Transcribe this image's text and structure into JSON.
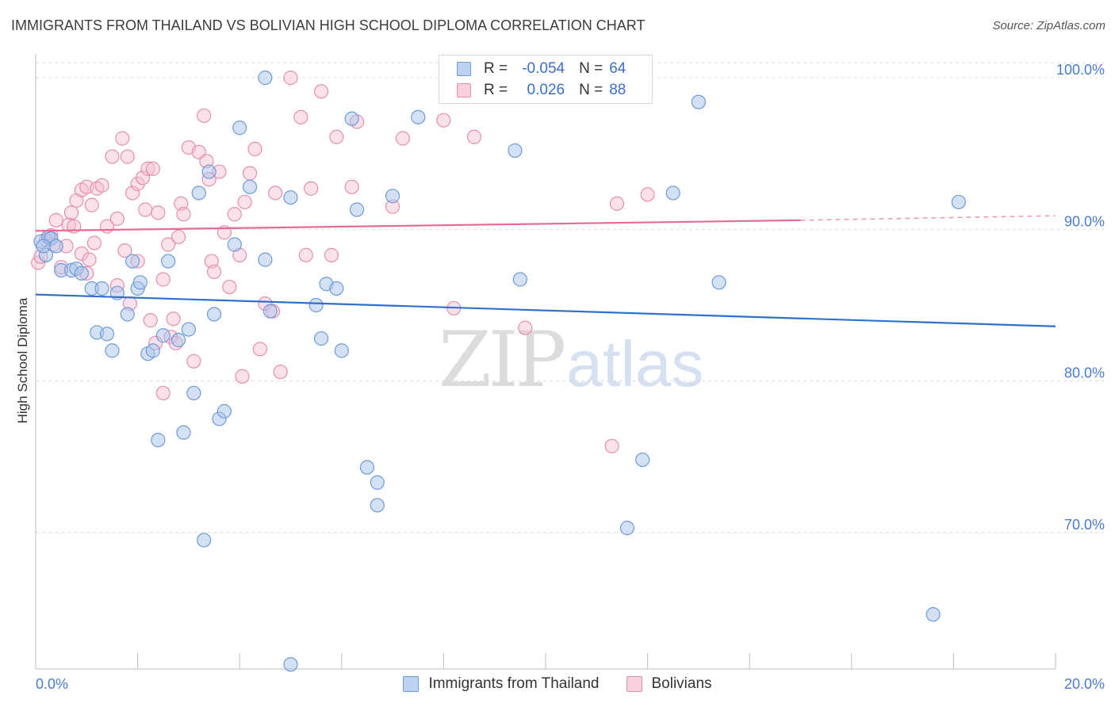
{
  "header": {
    "title": "IMMIGRANTS FROM THAILAND VS BOLIVIAN HIGH SCHOOL DIPLOMA CORRELATION CHART",
    "source": "Source: ZipAtlas.com"
  },
  "watermark": {
    "zip": "ZIP",
    "atlas": "atlas"
  },
  "legend": {
    "rows": [
      {
        "r_label": "R =",
        "r_value": "-0.054",
        "n_label": "N =",
        "n_value": "64"
      },
      {
        "r_label": "R =",
        "r_value": " 0.026",
        "n_label": "N =",
        "n_value": "88"
      }
    ]
  },
  "bottom_legend": [
    "Immigrants from Thailand",
    "Bolivians"
  ],
  "colors": {
    "blue_fill": "#a9c4ea",
    "blue_stroke": "#6d9bd8",
    "blue_line": "#3070cc",
    "pink_fill": "#f6bdd0",
    "pink_stroke": "#e58fb0",
    "pink_line": "#e46c96",
    "tick_text": "#4a7bd0",
    "grid": "#dcdcdc"
  },
  "chart_data": {
    "type": "scatter",
    "title": "IMMIGRANTS FROM THAILAND VS BOLIVIAN HIGH SCHOOL DIPLOMA CORRELATION CHART",
    "xlabel": "",
    "ylabel": "High School Diploma",
    "xlim": [
      0,
      20
    ],
    "ylim": [
      61,
      101
    ],
    "x_tick_labels": [
      "0.0%",
      "20.0%"
    ],
    "y_ticks": [
      70,
      80,
      90,
      100
    ],
    "y_tick_labels": [
      "70.0%",
      "80.0%",
      "90.0%",
      "100.0%"
    ],
    "grid": "horizontal dashed",
    "legend_position": "top-center",
    "series": [
      {
        "name": "Immigrants from Thailand",
        "color": "#a9c4ea",
        "r": -0.054,
        "n": 64,
        "trend": {
          "x": [
            0,
            20
          ],
          "y": [
            85.7,
            83.6
          ]
        },
        "points": [
          [
            0.1,
            89.2
          ],
          [
            0.2,
            88.3
          ],
          [
            0.25,
            89.5
          ],
          [
            0.3,
            89.4
          ],
          [
            0.4,
            88.9
          ],
          [
            0.5,
            87.3
          ],
          [
            0.7,
            87.3
          ],
          [
            0.8,
            87.4
          ],
          [
            0.9,
            87.1
          ],
          [
            1.1,
            86.1
          ],
          [
            1.3,
            86.1
          ],
          [
            1.6,
            85.8
          ],
          [
            1.8,
            84.4
          ],
          [
            1.2,
            83.2
          ],
          [
            1.4,
            83.1
          ],
          [
            1.5,
            82.0
          ],
          [
            1.9,
            87.9
          ],
          [
            2.0,
            86.1
          ],
          [
            2.05,
            86.5
          ],
          [
            2.2,
            81.8
          ],
          [
            2.3,
            82.0
          ],
          [
            2.5,
            83.0
          ],
          [
            2.6,
            87.9
          ],
          [
            2.8,
            82.7
          ],
          [
            3.0,
            83.4
          ],
          [
            3.1,
            79.2
          ],
          [
            3.2,
            92.4
          ],
          [
            3.4,
            93.8
          ],
          [
            3.5,
            84.4
          ],
          [
            3.6,
            77.5
          ],
          [
            3.7,
            78.0
          ],
          [
            3.9,
            89.0
          ],
          [
            4.0,
            96.7
          ],
          [
            4.2,
            92.8
          ],
          [
            4.5,
            100.0
          ],
          [
            4.5,
            88.0
          ],
          [
            4.6,
            84.6
          ],
          [
            2.4,
            76.1
          ],
          [
            2.9,
            76.6
          ],
          [
            3.3,
            69.5
          ],
          [
            5.0,
            61.3
          ],
          [
            5.0,
            92.1
          ],
          [
            5.6,
            82.8
          ],
          [
            5.5,
            85.0
          ],
          [
            5.7,
            86.4
          ],
          [
            5.9,
            86.1
          ],
          [
            6.0,
            82.0
          ],
          [
            6.2,
            97.3
          ],
          [
            6.3,
            91.3
          ],
          [
            6.5,
            74.3
          ],
          [
            6.7,
            73.3
          ],
          [
            6.7,
            71.8
          ],
          [
            7.0,
            92.2
          ],
          [
            7.5,
            97.4
          ],
          [
            9.4,
            95.2
          ],
          [
            9.5,
            86.7
          ],
          [
            11.6,
            70.3
          ],
          [
            11.9,
            74.8
          ],
          [
            12.5,
            92.4
          ],
          [
            13.0,
            98.4
          ],
          [
            13.4,
            86.5
          ],
          [
            17.6,
            64.6
          ],
          [
            18.1,
            91.8
          ],
          [
            0.15,
            88.9
          ]
        ]
      },
      {
        "name": "Bolivians",
        "color": "#f6bdd0",
        "r": 0.026,
        "n": 88,
        "trend": {
          "x": [
            0,
            15
          ],
          "y": [
            89.9,
            90.6
          ]
        },
        "trend_dashed": {
          "x": [
            15,
            20
          ],
          "y": [
            90.6,
            90.9
          ]
        },
        "points": [
          [
            0.05,
            87.8
          ],
          [
            0.1,
            88.2
          ],
          [
            0.2,
            89.3
          ],
          [
            0.3,
            89.6
          ],
          [
            0.4,
            90.6
          ],
          [
            0.5,
            87.5
          ],
          [
            0.6,
            88.9
          ],
          [
            0.65,
            90.3
          ],
          [
            0.7,
            91.1
          ],
          [
            0.75,
            90.2
          ],
          [
            0.8,
            91.9
          ],
          [
            0.9,
            88.4
          ],
          [
            0.9,
            92.6
          ],
          [
            1.0,
            92.8
          ],
          [
            1.0,
            87.1
          ],
          [
            1.1,
            91.6
          ],
          [
            1.15,
            89.1
          ],
          [
            1.2,
            92.7
          ],
          [
            1.3,
            92.9
          ],
          [
            1.4,
            90.2
          ],
          [
            1.5,
            94.8
          ],
          [
            1.6,
            90.7
          ],
          [
            1.6,
            86.3
          ],
          [
            1.7,
            96.0
          ],
          [
            1.75,
            88.6
          ],
          [
            1.8,
            94.8
          ],
          [
            1.85,
            85.1
          ],
          [
            1.9,
            92.4
          ],
          [
            2.0,
            93.0
          ],
          [
            2.0,
            87.9
          ],
          [
            2.1,
            93.4
          ],
          [
            2.15,
            91.3
          ],
          [
            2.2,
            94.0
          ],
          [
            2.25,
            84.0
          ],
          [
            2.3,
            94.0
          ],
          [
            2.35,
            82.5
          ],
          [
            2.4,
            91.1
          ],
          [
            2.5,
            86.7
          ],
          [
            2.6,
            89.0
          ],
          [
            2.65,
            82.9
          ],
          [
            2.7,
            84.1
          ],
          [
            2.75,
            82.5
          ],
          [
            2.8,
            89.5
          ],
          [
            2.85,
            91.7
          ],
          [
            3.0,
            95.4
          ],
          [
            3.1,
            81.3
          ],
          [
            3.2,
            95.1
          ],
          [
            3.3,
            97.5
          ],
          [
            3.35,
            94.5
          ],
          [
            3.4,
            93.3
          ],
          [
            3.45,
            87.9
          ],
          [
            3.5,
            87.2
          ],
          [
            3.6,
            93.8
          ],
          [
            3.8,
            86.2
          ],
          [
            3.9,
            91.0
          ],
          [
            4.0,
            88.3
          ],
          [
            4.1,
            91.8
          ],
          [
            4.2,
            93.7
          ],
          [
            4.3,
            95.3
          ],
          [
            4.4,
            82.1
          ],
          [
            4.5,
            85.1
          ],
          [
            4.65,
            84.6
          ],
          [
            4.7,
            92.4
          ],
          [
            4.8,
            80.6
          ],
          [
            5.0,
            100.0
          ],
          [
            5.2,
            97.4
          ],
          [
            5.3,
            88.3
          ],
          [
            5.4,
            92.7
          ],
          [
            5.6,
            99.1
          ],
          [
            5.8,
            88.3
          ],
          [
            5.9,
            96.1
          ],
          [
            6.2,
            92.8
          ],
          [
            6.3,
            97.1
          ],
          [
            7.0,
            91.5
          ],
          [
            7.2,
            96.0
          ],
          [
            8.0,
            97.2
          ],
          [
            8.2,
            84.8
          ],
          [
            8.6,
            96.1
          ],
          [
            9.6,
            83.5
          ],
          [
            11.3,
            75.7
          ],
          [
            11.4,
            91.7
          ],
          [
            12.0,
            92.3
          ],
          [
            2.5,
            79.2
          ],
          [
            4.05,
            80.3
          ],
          [
            0.35,
            89.0
          ],
          [
            1.05,
            88.0
          ],
          [
            2.9,
            91.0
          ],
          [
            3.7,
            89.8
          ]
        ]
      }
    ]
  }
}
